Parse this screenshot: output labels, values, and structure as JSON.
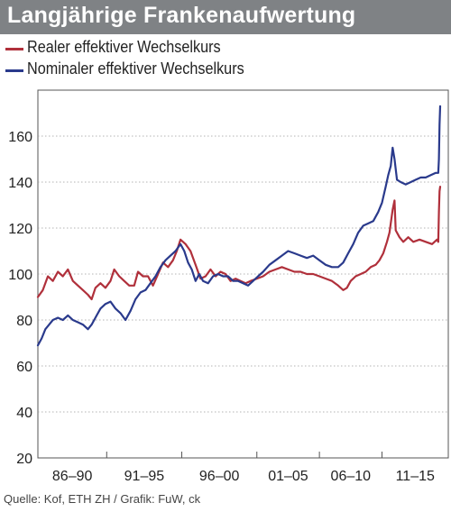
{
  "header": {
    "title": "Langjährige Frankenaufwertung"
  },
  "legend": [
    {
      "label": "Realer effektiver Wechselkurs",
      "color": "#b0303b"
    },
    {
      "label": "Nominaler effektiver Wechselkurs",
      "color": "#2a3a8c"
    }
  ],
  "footer": {
    "source": "Quelle: Kof, ETH ZH / Grafik: FuW, ck"
  },
  "chart_data": {
    "type": "line",
    "title": "Langjährige Frankenaufwertung",
    "xlabel": "",
    "ylabel": "",
    "ylim": [
      20,
      180
    ],
    "xlim": [
      1983.0,
      2015.8
    ],
    "yticks": [
      20,
      40,
      60,
      80,
      100,
      120,
      140,
      160
    ],
    "xgroups": [
      {
        "label": "86–90",
        "from": 1983.0,
        "to": 1988.5
      },
      {
        "label": "91–95",
        "from": 1988.5,
        "to": 1994.5
      },
      {
        "label": "96–00",
        "from": 1994.5,
        "to": 2000.5
      },
      {
        "label": "01–05",
        "from": 2000.5,
        "to": 2005.5
      },
      {
        "label": "06–10",
        "from": 2005.5,
        "to": 2010.5
      },
      {
        "label": "11–15",
        "from": 2010.5,
        "to": 2015.8
      }
    ],
    "grid": "horizontal",
    "legend_position": "top-left",
    "series": [
      {
        "name": "Realer effektiver Wechselkurs",
        "color": "#b0303b",
        "points": [
          [
            1983.0,
            90
          ],
          [
            1983.4,
            93
          ],
          [
            1983.8,
            99
          ],
          [
            1984.2,
            97
          ],
          [
            1984.6,
            101
          ],
          [
            1985.0,
            99
          ],
          [
            1985.4,
            102
          ],
          [
            1985.8,
            97
          ],
          [
            1986.2,
            95
          ],
          [
            1986.6,
            93
          ],
          [
            1987.0,
            91
          ],
          [
            1987.3,
            89
          ],
          [
            1987.6,
            94
          ],
          [
            1988.0,
            96
          ],
          [
            1988.4,
            94
          ],
          [
            1988.8,
            97
          ],
          [
            1989.1,
            102
          ],
          [
            1989.5,
            99
          ],
          [
            1989.9,
            97
          ],
          [
            1990.3,
            95
          ],
          [
            1990.7,
            95
          ],
          [
            1991.0,
            101
          ],
          [
            1991.4,
            99
          ],
          [
            1991.8,
            99
          ],
          [
            1992.2,
            95
          ],
          [
            1992.6,
            100
          ],
          [
            1993.0,
            105
          ],
          [
            1993.4,
            103
          ],
          [
            1993.8,
            106
          ],
          [
            1994.1,
            110
          ],
          [
            1994.4,
            115
          ],
          [
            1994.8,
            113
          ],
          [
            1995.2,
            110
          ],
          [
            1995.6,
            104
          ],
          [
            1996.0,
            98
          ],
          [
            1996.4,
            99
          ],
          [
            1996.8,
            102
          ],
          [
            1997.2,
            99
          ],
          [
            1997.6,
            101
          ],
          [
            1998.0,
            100
          ],
          [
            1998.4,
            97
          ],
          [
            1998.8,
            98
          ],
          [
            1999.2,
            97
          ],
          [
            1999.6,
            96
          ],
          [
            2000.0,
            97
          ],
          [
            2000.5,
            98
          ],
          [
            2001.0,
            99
          ],
          [
            2001.5,
            101
          ],
          [
            2002.0,
            102
          ],
          [
            2002.5,
            103
          ],
          [
            2003.0,
            102
          ],
          [
            2003.5,
            101
          ],
          [
            2004.0,
            101
          ],
          [
            2004.5,
            100
          ],
          [
            2005.0,
            100
          ],
          [
            2005.5,
            99
          ],
          [
            2006.0,
            98
          ],
          [
            2006.5,
            97
          ],
          [
            2007.0,
            95
          ],
          [
            2007.4,
            93
          ],
          [
            2007.7,
            94
          ],
          [
            2008.0,
            97
          ],
          [
            2008.4,
            99
          ],
          [
            2008.8,
            100
          ],
          [
            2009.2,
            101
          ],
          [
            2009.6,
            103
          ],
          [
            2010.0,
            104
          ],
          [
            2010.3,
            106
          ],
          [
            2010.6,
            109
          ],
          [
            2010.9,
            114
          ],
          [
            2011.1,
            118
          ],
          [
            2011.35,
            128
          ],
          [
            2011.5,
            132
          ],
          [
            2011.6,
            119
          ],
          [
            2011.9,
            116
          ],
          [
            2012.2,
            114
          ],
          [
            2012.6,
            116
          ],
          [
            2013.0,
            114
          ],
          [
            2013.5,
            115
          ],
          [
            2014.0,
            114
          ],
          [
            2014.5,
            113
          ],
          [
            2014.9,
            115
          ],
          [
            2015.0,
            114
          ],
          [
            2015.05,
            127
          ],
          [
            2015.1,
            136
          ],
          [
            2015.15,
            138
          ]
        ]
      },
      {
        "name": "Nominaler effektiver Wechselkurs",
        "color": "#2a3a8c",
        "points": [
          [
            1983.0,
            69
          ],
          [
            1983.3,
            72
          ],
          [
            1983.6,
            76
          ],
          [
            1983.9,
            78
          ],
          [
            1984.2,
            80
          ],
          [
            1984.6,
            81
          ],
          [
            1985.0,
            80
          ],
          [
            1985.4,
            82
          ],
          [
            1985.8,
            80
          ],
          [
            1986.2,
            79
          ],
          [
            1986.6,
            78
          ],
          [
            1987.0,
            76
          ],
          [
            1987.3,
            78
          ],
          [
            1987.7,
            82
          ],
          [
            1988.0,
            85
          ],
          [
            1988.4,
            87
          ],
          [
            1988.8,
            88
          ],
          [
            1989.2,
            85
          ],
          [
            1989.6,
            83
          ],
          [
            1990.0,
            80
          ],
          [
            1990.4,
            84
          ],
          [
            1990.8,
            89
          ],
          [
            1991.2,
            92
          ],
          [
            1991.6,
            93
          ],
          [
            1992.0,
            96
          ],
          [
            1992.4,
            99
          ],
          [
            1992.8,
            103
          ],
          [
            1993.2,
            106
          ],
          [
            1993.6,
            108
          ],
          [
            1994.0,
            110
          ],
          [
            1994.4,
            113
          ],
          [
            1994.7,
            110
          ],
          [
            1995.0,
            105
          ],
          [
            1995.3,
            102
          ],
          [
            1995.6,
            97
          ],
          [
            1995.9,
            100
          ],
          [
            1996.2,
            97
          ],
          [
            1996.6,
            96
          ],
          [
            1997.0,
            99
          ],
          [
            1997.4,
            100
          ],
          [
            1997.8,
            99
          ],
          [
            1998.2,
            99
          ],
          [
            1998.6,
            97
          ],
          [
            1999.0,
            97
          ],
          [
            1999.4,
            96
          ],
          [
            1999.8,
            95
          ],
          [
            2000.2,
            97
          ],
          [
            2000.6,
            99
          ],
          [
            2001.0,
            101
          ],
          [
            2001.5,
            104
          ],
          [
            2002.0,
            106
          ],
          [
            2002.5,
            108
          ],
          [
            2003.0,
            110
          ],
          [
            2003.5,
            109
          ],
          [
            2004.0,
            108
          ],
          [
            2004.5,
            107
          ],
          [
            2005.0,
            108
          ],
          [
            2005.5,
            106
          ],
          [
            2006.0,
            104
          ],
          [
            2006.5,
            103
          ],
          [
            2007.0,
            103
          ],
          [
            2007.4,
            105
          ],
          [
            2007.8,
            109
          ],
          [
            2008.2,
            113
          ],
          [
            2008.6,
            118
          ],
          [
            2009.0,
            121
          ],
          [
            2009.4,
            122
          ],
          [
            2009.8,
            123
          ],
          [
            2010.2,
            127
          ],
          [
            2010.5,
            131
          ],
          [
            2010.8,
            138
          ],
          [
            2011.0,
            143
          ],
          [
            2011.2,
            147
          ],
          [
            2011.35,
            155
          ],
          [
            2011.5,
            150
          ],
          [
            2011.7,
            141
          ],
          [
            2012.0,
            140
          ],
          [
            2012.4,
            139
          ],
          [
            2012.8,
            140
          ],
          [
            2013.2,
            141
          ],
          [
            2013.6,
            142
          ],
          [
            2014.0,
            142
          ],
          [
            2014.4,
            143
          ],
          [
            2014.8,
            144
          ],
          [
            2015.0,
            144
          ],
          [
            2015.05,
            150
          ],
          [
            2015.1,
            165
          ],
          [
            2015.15,
            173
          ]
        ]
      }
    ]
  }
}
